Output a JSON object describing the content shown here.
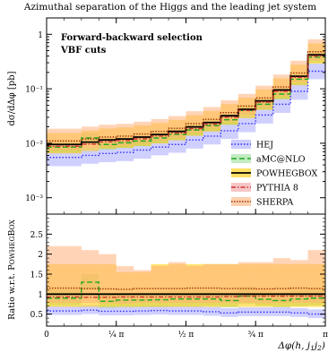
{
  "figure": {
    "title": "Azimuthal separation of the Higgs and the leading jet system",
    "annotations": [
      "Forward-backward selection",
      "VBF cuts"
    ]
  },
  "chart_data": [
    {
      "type": "line",
      "panel": "main",
      "xlabel": "Δφ(h, j1j2)",
      "ylabel": "dσ/dΔφ [pb]",
      "xlim": [
        0,
        3.14159
      ],
      "ylim": [
        0.0005,
        2
      ],
      "yscale": "log",
      "yticks": [
        {
          "v": 0.001,
          "label": "10⁻³"
        },
        {
          "v": 0.01,
          "label": "10⁻²"
        },
        {
          "v": 0.1,
          "label": "10⁻¹"
        },
        {
          "v": 1,
          "label": "1"
        }
      ],
      "legend_position": "bottom-right",
      "bin_edges": [
        0,
        0.196,
        0.393,
        0.589,
        0.785,
        0.982,
        1.178,
        1.374,
        1.571,
        1.767,
        1.963,
        2.16,
        2.356,
        2.553,
        2.749,
        2.945,
        3.142
      ],
      "series": [
        {
          "name": "HEJ",
          "color": "#2f2fff",
          "dash": "dotted",
          "band_color": "#aaaaff",
          "values": [
            0.0055,
            0.0055,
            0.006,
            0.0065,
            0.0068,
            0.0075,
            0.0085,
            0.0095,
            0.0115,
            0.0135,
            0.017,
            0.023,
            0.033,
            0.052,
            0.09,
            0.21
          ],
          "band_lo": [
            0.0038,
            0.0038,
            0.0042,
            0.0045,
            0.0047,
            0.0052,
            0.006,
            0.0067,
            0.008,
            0.0095,
            0.012,
            0.016,
            0.023,
            0.036,
            0.063,
            0.15
          ],
          "band_hi": [
            0.0078,
            0.0078,
            0.0085,
            0.0092,
            0.0096,
            0.0105,
            0.012,
            0.0135,
            0.016,
            0.019,
            0.024,
            0.032,
            0.046,
            0.073,
            0.125,
            0.29
          ]
        },
        {
          "name": "aMC@NLO",
          "color": "#22aa22",
          "dash": "dashed",
          "band_color": "#99dd99",
          "values": [
            0.0085,
            0.0085,
            0.0125,
            0.0095,
            0.0102,
            0.011,
            0.0125,
            0.0145,
            0.0175,
            0.021,
            0.027,
            0.04,
            0.052,
            0.08,
            0.15,
            0.38
          ],
          "band_lo": [
            0.0068,
            0.0068,
            0.01,
            0.0076,
            0.0082,
            0.0088,
            0.01,
            0.0116,
            0.014,
            0.0168,
            0.0216,
            0.032,
            0.042,
            0.064,
            0.12,
            0.3
          ],
          "band_hi": [
            0.0106,
            0.0106,
            0.0156,
            0.0119,
            0.0128,
            0.0138,
            0.0156,
            0.0181,
            0.0219,
            0.0263,
            0.0338,
            0.05,
            0.065,
            0.1,
            0.19,
            0.48
          ]
        },
        {
          "name": "POWHEGBOX",
          "color": "#000000",
          "dash": "solid",
          "band_color": "#ffcc00",
          "values": [
            0.0095,
            0.0095,
            0.0105,
            0.0115,
            0.012,
            0.013,
            0.0145,
            0.0165,
            0.02,
            0.024,
            0.032,
            0.042,
            0.06,
            0.095,
            0.17,
            0.42
          ],
          "band_lo": [
            0.0065,
            0.0065,
            0.0072,
            0.0079,
            0.0082,
            0.0089,
            0.0099,
            0.0113,
            0.0137,
            0.0164,
            0.0219,
            0.0288,
            0.041,
            0.065,
            0.116,
            0.29
          ],
          "band_hi": [
            0.0155,
            0.0155,
            0.0171,
            0.0187,
            0.0196,
            0.0212,
            0.0236,
            0.0269,
            0.0326,
            0.0391,
            0.0522,
            0.0685,
            0.0978,
            0.155,
            0.277,
            0.68
          ]
        },
        {
          "name": "PYTHIA 8",
          "color": "#cc3333",
          "dash": "dashdot",
          "band_color": "#f0a0a0",
          "values": [
            0.0088,
            0.0088,
            0.0096,
            0.0106,
            0.0112,
            0.0121,
            0.0135,
            0.0154,
            0.0186,
            0.0224,
            0.03,
            0.04,
            0.057,
            0.09,
            0.162,
            0.4
          ],
          "band_lo": [
            0.0088,
            0.0088,
            0.0096,
            0.0106,
            0.0112,
            0.0121,
            0.0135,
            0.0154,
            0.0186,
            0.0224,
            0.03,
            0.04,
            0.057,
            0.09,
            0.162,
            0.4
          ],
          "band_hi": [
            0.0088,
            0.0088,
            0.0096,
            0.0106,
            0.0112,
            0.0121,
            0.0135,
            0.0154,
            0.0186,
            0.0224,
            0.03,
            0.04,
            0.057,
            0.09,
            0.162,
            0.4
          ]
        },
        {
          "name": "SHERPA",
          "color": "#993300",
          "dash": "densedot",
          "band_color": "#ffb07a",
          "values": [
            0.011,
            0.011,
            0.012,
            0.013,
            0.0135,
            0.0148,
            0.0165,
            0.0188,
            0.023,
            0.0275,
            0.0365,
            0.048,
            0.068,
            0.108,
            0.195,
            0.48
          ],
          "band_lo": [
            0.0075,
            0.0075,
            0.0082,
            0.0089,
            0.0092,
            0.0101,
            0.0113,
            0.0128,
            0.0157,
            0.0188,
            0.025,
            0.033,
            0.046,
            0.074,
            0.133,
            0.33
          ],
          "band_hi": [
            0.0185,
            0.0185,
            0.0202,
            0.0219,
            0.0227,
            0.0249,
            0.0278,
            0.0316,
            0.0387,
            0.0463,
            0.0614,
            0.0808,
            0.114,
            0.182,
            0.328,
            0.81
          ]
        }
      ]
    },
    {
      "type": "line",
      "panel": "ratio",
      "ylabel": "Ratio w.r.t. POWHEGBOX",
      "xlabel": "Δφ(h, j1j2)",
      "xlim": [
        0,
        3.14159
      ],
      "ylim": [
        0.2,
        3.0
      ],
      "yticks": [
        0.5,
        1,
        1.5,
        2,
        2.5
      ],
      "xticks": [
        {
          "v": 0,
          "label": "0"
        },
        {
          "v": 0.785,
          "label": "¼ π"
        },
        {
          "v": 1.571,
          "label": "½ π"
        },
        {
          "v": 2.356,
          "label": "¾ π"
        },
        {
          "v": 3.142,
          "label": "π"
        }
      ],
      "series": [
        {
          "name": "HEJ",
          "values": [
            0.58,
            0.58,
            0.6,
            0.57,
            0.57,
            0.58,
            0.59,
            0.58,
            0.58,
            0.56,
            0.53,
            0.55,
            0.55,
            0.55,
            0.53,
            0.5
          ],
          "band_lo": [
            0.48,
            0.48,
            0.5,
            0.47,
            0.47,
            0.48,
            0.49,
            0.48,
            0.48,
            0.46,
            0.43,
            0.45,
            0.45,
            0.45,
            0.43,
            0.4
          ],
          "band_hi": [
            0.7,
            0.7,
            0.72,
            0.69,
            0.69,
            0.7,
            0.71,
            0.7,
            0.7,
            0.68,
            0.65,
            0.67,
            0.67,
            0.67,
            0.65,
            0.62
          ]
        },
        {
          "name": "aMC@NLO",
          "values": [
            0.9,
            0.9,
            1.3,
            0.82,
            0.85,
            0.85,
            0.86,
            0.88,
            0.88,
            0.88,
            0.84,
            0.95,
            0.87,
            0.84,
            0.88,
            0.9
          ],
          "band_lo": [
            0.72,
            0.72,
            1.1,
            0.66,
            0.68,
            0.68,
            0.69,
            0.7,
            0.7,
            0.7,
            0.67,
            0.76,
            0.7,
            0.67,
            0.7,
            0.72
          ],
          "band_hi": [
            1.12,
            1.12,
            1.5,
            1.0,
            1.05,
            1.05,
            1.07,
            1.1,
            1.1,
            1.1,
            1.05,
            1.18,
            1.08,
            1.05,
            1.1,
            1.12
          ]
        },
        {
          "name": "POWHEGBOX",
          "values": [
            1,
            1,
            1,
            1,
            1,
            1,
            1,
            1,
            1,
            1,
            1,
            1,
            1,
            1,
            1,
            1
          ],
          "band_lo": [
            0.68,
            0.68,
            0.68,
            0.68,
            0.68,
            0.68,
            0.68,
            0.68,
            0.68,
            0.68,
            0.68,
            0.68,
            0.68,
            0.68,
            0.68,
            0.68
          ],
          "band_hi": [
            1.75,
            1.75,
            1.75,
            1.75,
            1.55,
            1.55,
            1.75,
            1.75,
            1.75,
            1.75,
            1.75,
            1.75,
            1.75,
            1.75,
            1.75,
            1.75
          ]
        },
        {
          "name": "PYTHIA 8",
          "values": [
            0.93,
            0.93,
            0.92,
            0.92,
            0.93,
            0.93,
            0.93,
            0.93,
            0.93,
            0.93,
            0.94,
            0.95,
            0.95,
            0.95,
            0.95,
            0.95
          ],
          "band_lo": [
            0.93,
            0.93,
            0.92,
            0.92,
            0.93,
            0.93,
            0.93,
            0.93,
            0.93,
            0.93,
            0.94,
            0.95,
            0.95,
            0.95,
            0.95,
            0.95
          ],
          "band_hi": [
            0.93,
            0.93,
            0.92,
            0.92,
            0.93,
            0.93,
            0.93,
            0.93,
            0.93,
            0.93,
            0.94,
            0.95,
            0.95,
            0.95,
            0.95,
            0.95
          ]
        },
        {
          "name": "SHERPA",
          "values": [
            1.15,
            1.15,
            1.14,
            1.13,
            1.12,
            1.14,
            1.14,
            1.14,
            1.15,
            1.15,
            1.14,
            1.14,
            1.13,
            1.14,
            1.15,
            1.14
          ],
          "band_lo": [
            0.78,
            0.78,
            0.78,
            0.77,
            0.76,
            0.78,
            0.78,
            0.78,
            0.78,
            0.78,
            0.78,
            0.78,
            0.77,
            0.78,
            0.78,
            0.78
          ],
          "band_hi": [
            2.2,
            2.2,
            2.1,
            2.0,
            1.7,
            1.6,
            1.7,
            1.8,
            1.7,
            1.75,
            1.75,
            1.8,
            1.8,
            1.9,
            1.85,
            2.1
          ]
        }
      ]
    }
  ]
}
